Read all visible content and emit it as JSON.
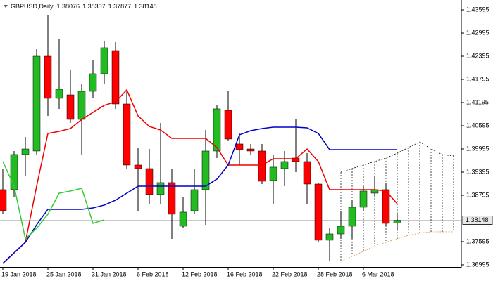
{
  "chart_data": {
    "type": "candlestick",
    "title": "GBPUSD,Daily",
    "categories": [
      "19 Jan 2018",
      null,
      null,
      null,
      "25 Jan 2018",
      null,
      null,
      null,
      "31 Jan 2018",
      null,
      null,
      null,
      "6 Feb 2018",
      null,
      null,
      null,
      "12 Feb 2018",
      null,
      null,
      null,
      "16 Feb 2018",
      null,
      null,
      null,
      "22 Feb 2018",
      null,
      null,
      null,
      "28 Feb 2018",
      null,
      null,
      null,
      "6 Mar 2018",
      null,
      null,
      null,
      null,
      null,
      null,
      null,
      null
    ],
    "open": [
      1.38941,
      1.38941,
      1.3985,
      1.39941,
      1.42395,
      1.41305,
      1.41395,
      1.40759,
      1.41486,
      1.41941,
      1.42541,
      1.41159,
      1.39577,
      1.39486,
      1.38814,
      1.39123,
      1.37995,
      1.38395,
      1.38941,
      1.39941,
      1.40995,
      1.40123,
      1.39995,
      1.39941,
      1.39177,
      1.39486,
      1.39759,
      1.39668,
      1.39086,
      1.37632,
      1.37795,
      1.37995,
      1.38486,
      1.3885,
      1.38941,
      1.38076,
      null,
      null,
      null,
      null,
      null
    ],
    "high": [
      1.39486,
      1.39941,
      1.40305,
      1.42577,
      1.4345,
      1.4285,
      1.42032,
      1.41668,
      1.42305,
      1.42795,
      1.42759,
      1.41486,
      1.40032,
      1.39995,
      1.40668,
      1.39486,
      1.38759,
      1.39486,
      1.40486,
      1.41123,
      1.41486,
      1.40395,
      1.40123,
      1.40123,
      1.3985,
      1.39941,
      1.40759,
      1.39886,
      1.39123,
      1.37941,
      1.38395,
      1.38668,
      1.39032,
      1.39305,
      1.39123,
      1.38307,
      null,
      null,
      null,
      null,
      null
    ],
    "low": [
      1.38305,
      1.38759,
      1.39305,
      1.3985,
      1.4085,
      1.41032,
      1.40668,
      1.3985,
      1.41305,
      1.41668,
      1.41032,
      1.39486,
      1.38395,
      1.38577,
      1.38577,
      1.37668,
      1.37941,
      1.38305,
      1.38032,
      1.39759,
      1.40214,
      1.39577,
      1.3985,
      1.39086,
      1.38577,
      1.39032,
      1.39395,
      1.38577,
      1.37577,
      1.37086,
      1.37668,
      1.37668,
      1.38395,
      1.38759,
      1.37995,
      1.37877,
      null,
      null,
      null,
      null,
      null
    ],
    "close": [
      1.38395,
      1.3985,
      1.39995,
      1.42395,
      1.41305,
      1.41541,
      1.40759,
      1.41486,
      1.41941,
      1.42614,
      1.41159,
      1.39577,
      1.39486,
      1.38814,
      1.39123,
      1.38305,
      1.38359,
      1.38941,
      1.39941,
      1.41032,
      1.4025,
      1.39977,
      1.39941,
      1.39159,
      1.39523,
      1.39668,
      1.39668,
      1.39086,
      1.37632,
      1.37795,
      1.37995,
      1.38486,
      1.38905,
      1.38941,
      1.38068,
      1.38148,
      null,
      null,
      null,
      null,
      null
    ],
    "up_color": "#22bb22",
    "down_color": "#ff0000",
    "lines": [
      {
        "color": "#ee0000",
        "style": "solid",
        "values": [
          1.37032,
          1.37305,
          1.37577,
          1.39032,
          1.40395,
          1.4045,
          1.40523,
          1.40759,
          1.40941,
          1.41123,
          1.41214,
          1.41523,
          1.4085,
          1.40577,
          1.40486,
          1.40268,
          1.40268,
          1.40268,
          1.40268,
          1.40032,
          1.39577,
          1.39577,
          1.39577,
          1.39577,
          1.39741,
          1.39741,
          1.39741,
          1.39995,
          1.39668,
          1.38941,
          1.38941,
          1.38941,
          1.38941,
          1.38941,
          1.38905,
          1.38577,
          null,
          null,
          null,
          null,
          null
        ]
      },
      {
        "color": "#0000cc",
        "style": "solid",
        "values": [
          1.37032,
          1.37305,
          1.37577,
          1.38032,
          1.38432,
          1.38432,
          1.38432,
          1.38432,
          1.38468,
          1.38541,
          1.38668,
          1.3885,
          1.39032,
          1.39032,
          1.39032,
          1.39032,
          1.39032,
          1.39032,
          1.39032,
          1.39214,
          1.39577,
          1.40359,
          1.40468,
          1.40523,
          1.40559,
          1.40559,
          1.40559,
          1.40541,
          1.40395,
          1.39977,
          1.39977,
          1.39977,
          1.39977,
          1.39977,
          1.39977,
          1.39977,
          null,
          null,
          null,
          null,
          null
        ]
      },
      {
        "color": "#33cc33",
        "style": "solid",
        "values": [
          1.39668,
          1.39032,
          1.37668,
          1.37941,
          1.38305,
          1.3885,
          1.38905,
          1.38977,
          1.38068,
          1.38159,
          null,
          null,
          null,
          null,
          null,
          null,
          null,
          null,
          null,
          null,
          null,
          null,
          null,
          null,
          null,
          null,
          null,
          null,
          null,
          null,
          null,
          null,
          null,
          null,
          null,
          null,
          null,
          null,
          null,
          null,
          null
        ]
      }
    ],
    "cloud": {
      "upper": {
        "color": "#000000",
        "values": [
          null,
          null,
          null,
          null,
          null,
          null,
          null,
          null,
          null,
          null,
          null,
          null,
          null,
          null,
          null,
          null,
          null,
          null,
          null,
          null,
          null,
          null,
          null,
          null,
          null,
          null,
          null,
          null,
          null,
          null,
          1.39395,
          1.39486,
          1.39577,
          1.39668,
          1.39759,
          1.39886,
          1.40032,
          1.40177,
          1.39995,
          1.3985,
          1.39814
        ]
      },
      "lower": {
        "color": "#e0963c",
        "values": [
          null,
          null,
          null,
          null,
          null,
          null,
          null,
          null,
          null,
          null,
          null,
          null,
          null,
          null,
          null,
          null,
          null,
          null,
          null,
          null,
          null,
          null,
          null,
          null,
          null,
          null,
          null,
          null,
          null,
          null,
          1.37086,
          1.37214,
          1.37341,
          1.37486,
          1.37577,
          1.37668,
          1.37759,
          1.37814,
          1.3785,
          1.3785,
          1.3785
        ]
      }
    },
    "ylim": [
      1.3694,
      1.4385
    ],
    "yticks": [
      1.43595,
      1.42995,
      1.42395,
      1.41795,
      1.41195,
      1.40595,
      1.39995,
      1.39395,
      1.38795,
      1.37595,
      1.36995
    ],
    "grid": false
  }
}
